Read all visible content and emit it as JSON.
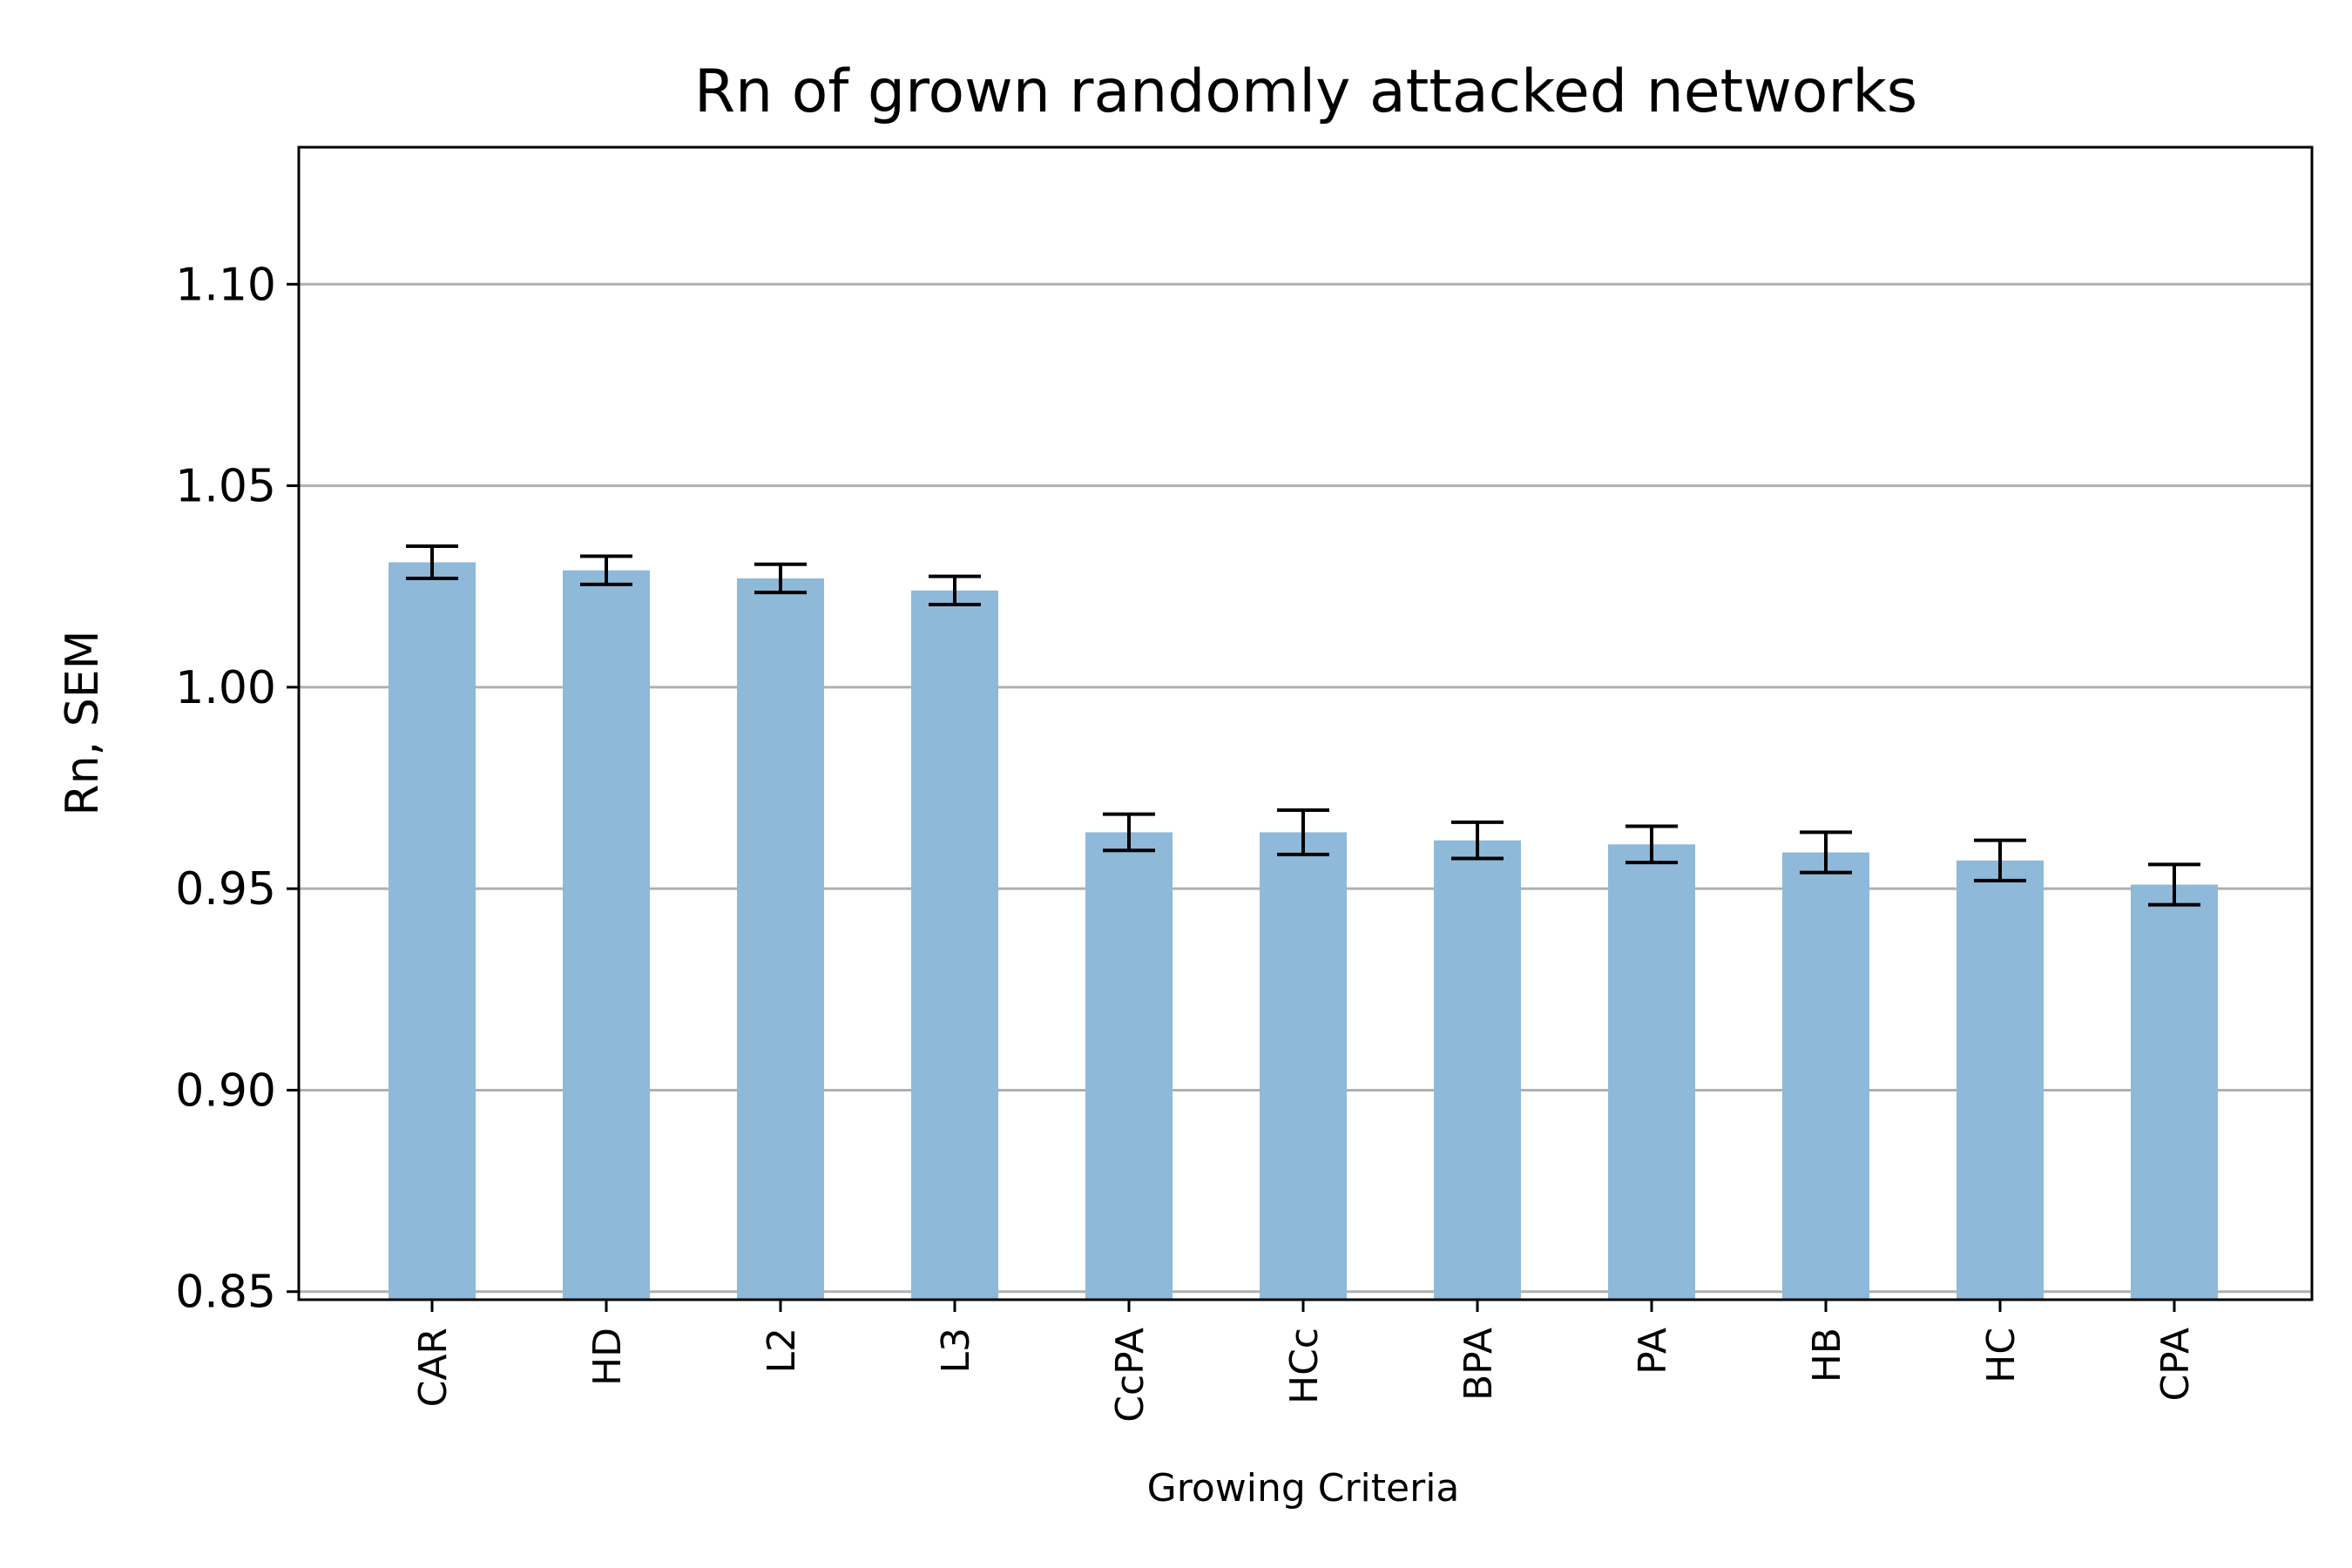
{
  "chart_data": {
    "type": "bar",
    "title": "Rn of grown randomly attacked networks",
    "xlabel": "Growing Criteria",
    "ylabel": "Rn, SEM",
    "categories": [
      "CAR",
      "HD",
      "L2",
      "L3",
      "CcPA",
      "HCc",
      "BPA",
      "PA",
      "HB",
      "HC",
      "CPA"
    ],
    "values": [
      1.031,
      1.029,
      1.027,
      1.024,
      0.964,
      0.964,
      0.962,
      0.961,
      0.959,
      0.957,
      0.951
    ],
    "errors": [
      0.004,
      0.0035,
      0.0035,
      0.0035,
      0.0045,
      0.0055,
      0.0045,
      0.0045,
      0.005,
      0.005,
      0.005
    ],
    "ylim": [
      0.848,
      1.134
    ],
    "yticks": [
      0.85,
      0.9,
      0.95,
      1.0,
      1.05,
      1.1
    ],
    "ytick_labels": [
      "0.85",
      "0.90",
      "0.95",
      "1.00",
      "1.05",
      "1.10"
    ],
    "grid": "y",
    "legend": "none",
    "bar_color": "#8fb9d9",
    "error_color": "#000000",
    "grid_color": "#b0b0b0"
  }
}
